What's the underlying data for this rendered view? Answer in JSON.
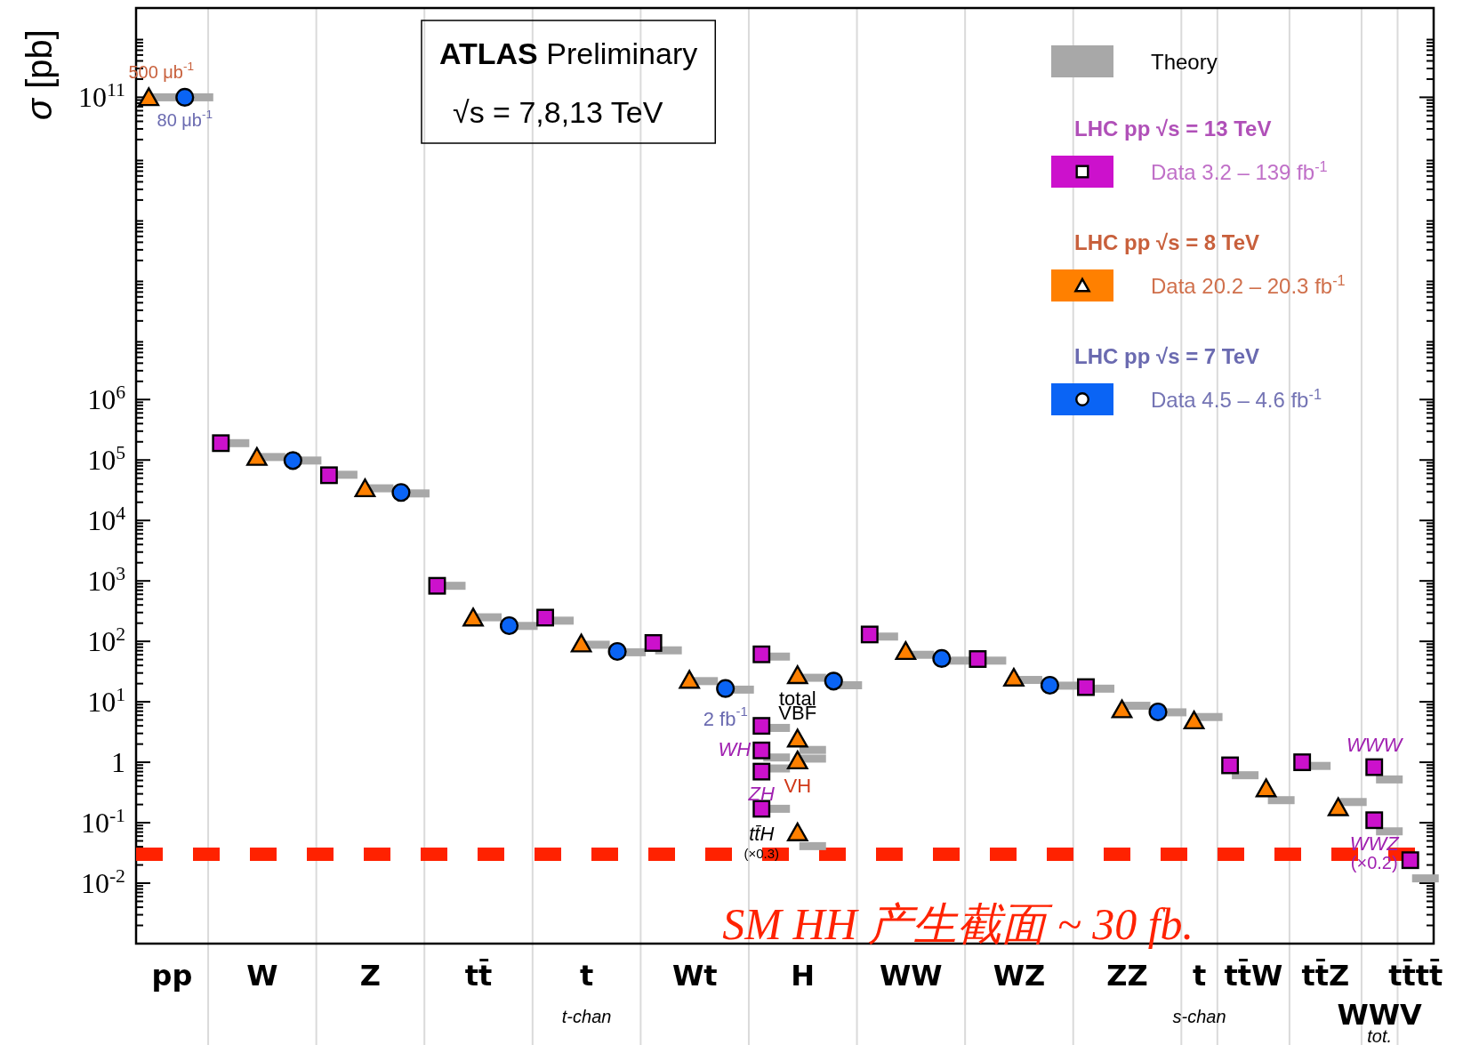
{
  "chart_data": {
    "type": "scatter",
    "log": true,
    "legend": "top right",
    "title": "**ATLAS** Preliminary",
    "subtitle": "√s = 7,8,13 TeV",
    "ylabel": "*σ* [pb]",
    "categories": [
      "pp",
      "W",
      "Z",
      "tt̄",
      "t",
      "Wt",
      "H",
      "WW",
      "WZ",
      "ZZ",
      "t",
      "tt̄W",
      "tt̄Z",
      "WWV",
      "tt̄tt̄"
    ],
    "ylim": [
      0.001,
      3000000000000.0
    ],
    "yticks": [
      {
        "value": 0.01,
        "label": "10$^{-2}$"
      },
      {
        "value": 0.1,
        "label": "10$^{-1}$"
      },
      1,
      {
        "value": 10,
        "label": "10$^{1}$"
      },
      {
        "value": 100,
        "label": "10$^{2}$"
      },
      {
        "value": 1000,
        "label": "10$^{3}$"
      },
      {
        "value": 10000,
        "label": "10$^{4}$"
      },
      {
        "value": 100000,
        "label": "10$^{5}$"
      },
      {
        "value": 1000000,
        "label": "10$^{6}$"
      },
      {
        "value": 100000000000,
        "label": "10$^{11}$"
      }
    ],
    "series": [
      {
        "name": "Theory",
        "color": "#a8a8a8",
        "marker": "square",
        "values": [
          null,
          190000,
          57000,
          830,
          220,
          71,
          56,
          120,
          48,
          16.5,
          null,
          0.61,
          0.87,
          0.52,
          0.012
        ]
      },
      {
        "name": "Data  3.2 – 139 fb$^{-1}$",
        "color": "#cc11cc",
        "marker": "square",
        "values": [
          null,
          190000,
          56000,
          830,
          247,
          94,
          61,
          130,
          51,
          17.5,
          null,
          0.89,
          1.0,
          0.83,
          0.024
        ]
      },
      {
        "name": "Data  20.2 – 20.3 fb$^{-1}$",
        "color": "#ff8000",
        "marker": "triangle",
        "values": [
          100000000000,
          112000,
          34000,
          247,
          92,
          23,
          27.5,
          69,
          25,
          7.5,
          4.9,
          0.37,
          0.18,
          null,
          null
        ]
      },
      {
        "name": "Data  4.5 – 4.6 fb$^{-1}$",
        "color": "#0a64f5",
        "marker": "circle",
        "values": [
          100000000000,
          98000,
          29000,
          182,
          68,
          16.6,
          22,
          52,
          18.8,
          6.8,
          null,
          null,
          null,
          null,
          null
        ]
      },
      {
        "color": "#a8a8a8",
        "marker": "square",
        "values": [
          100000000000,
          112000,
          34000,
          250,
          88,
          22,
          25,
          60,
          23,
          8.6,
          5.6,
          0.236,
          0.22,
          null,
          null
        ]
      },
      {
        "color": "#a8a8a8",
        "marker": "square",
        "values": [
          100000000000,
          98000,
          28000,
          180,
          66,
          15.9,
          18.8,
          48,
          18.5,
          6.7,
          null,
          null,
          null,
          null,
          null
        ]
      },
      {
        "color": "#cc11cc",
        "marker": "square",
        "x": [
          "H",
          "H",
          "H",
          "H",
          "WWV"
        ],
        "values": [
          4.0,
          1.57,
          0.7,
          0.17,
          0.11
        ]
      },
      {
        "color": "#ff8000",
        "marker": "triangle",
        "x": [
          "H",
          "H",
          "H"
        ],
        "values": [
          2.46,
          1.07,
          0.069
        ]
      },
      {
        "color": "#a8a8a8",
        "marker": "square",
        "x": [
          "H",
          "H",
          "H",
          "H",
          "WWV"
        ],
        "values": [
          3.7,
          1.2,
          0.79,
          0.17,
          0.072
        ]
      },
      {
        "color": "#a8a8a8",
        "marker": "square",
        "x": [
          "H",
          "H",
          "H"
        ],
        "values": [
          1.6,
          1.15,
          0.041
        ]
      }
    ],
    "ref_lines": [
      {
        "axis": "y",
        "value": 0.03,
        "label": "SM HH 产生截面 ~ 30 fb.",
        "color": "#ff2200",
        "line_style": "dashed"
      }
    ],
    "annotations": [
      "LHC pp √s = 13 TeV",
      "LHC pp √s = 8 TeV",
      "LHC pp √s = 7 TeV",
      "t-chan",
      "s-chan",
      "tot.",
      "500 μb$^{-1}$",
      "80 μb$^{-1}$",
      "2 fb$^{-1}$",
      "total",
      "VBF",
      "WH",
      "ZH",
      "VH",
      "tt̄H",
      "(×0.3)",
      "WWW",
      "WWZ",
      "(×0.2)"
    ]
  }
}
